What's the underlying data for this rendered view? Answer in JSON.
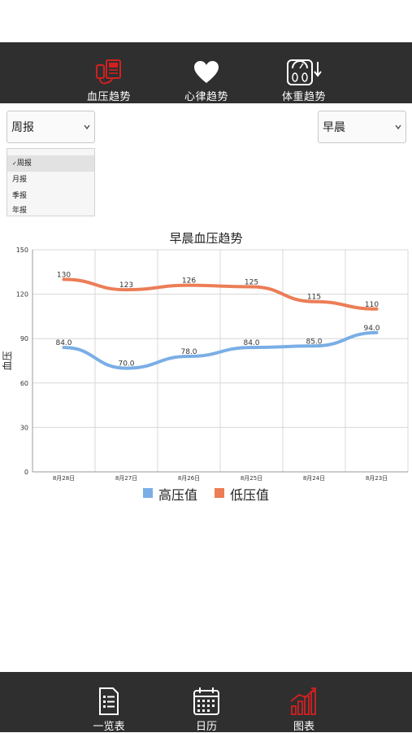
{
  "top_tabs": [
    {
      "label": "血压趋势",
      "icon": "blood-pressure-icon",
      "active": true
    },
    {
      "label": "心律趋势",
      "icon": "heart-icon",
      "active": false
    },
    {
      "label": "体重趋势",
      "icon": "scale-icon",
      "active": false
    }
  ],
  "period_select": {
    "value": "周报",
    "options": [
      "周报",
      "月报",
      "季报",
      "年报"
    ]
  },
  "time_select": {
    "value": "早晨"
  },
  "chart_data": {
    "type": "line",
    "title": "早晨血压趋势",
    "ylabel": "血压",
    "xlabel": "",
    "categories": [
      "8月28日",
      "8月27日",
      "8月26日",
      "8月25日",
      "8月24日",
      "8月23日"
    ],
    "ylim": [
      0,
      150
    ],
    "yticks": [
      "0",
      "30",
      "60",
      "90",
      "120",
      "150"
    ],
    "grid": true,
    "legend_position": "bottom",
    "series": [
      {
        "name": "高压值",
        "values": [
          84,
          70,
          78,
          84,
          85,
          94
        ],
        "labels": [
          "84.0",
          "70.0",
          "78.0",
          "84.0",
          "85.0",
          "94.0"
        ],
        "color": "#7aaee6"
      },
      {
        "name": "低压值",
        "values": [
          130,
          123,
          126,
          125,
          115,
          110
        ],
        "labels": [
          "130",
          "123",
          "126",
          "125",
          "115",
          "110"
        ],
        "color": "#ec7d56"
      }
    ]
  },
  "bottom_tabs": [
    {
      "label": "一览表",
      "icon": "list-icon",
      "active": false
    },
    {
      "label": "日历",
      "icon": "calendar-icon",
      "active": false
    },
    {
      "label": "图表",
      "icon": "bar-chart-icon",
      "active": true
    }
  ],
  "colors": {
    "bar_bg": "#2f2f2f",
    "active_icon": "#d22020",
    "inactive_icon": "#ffffff"
  }
}
